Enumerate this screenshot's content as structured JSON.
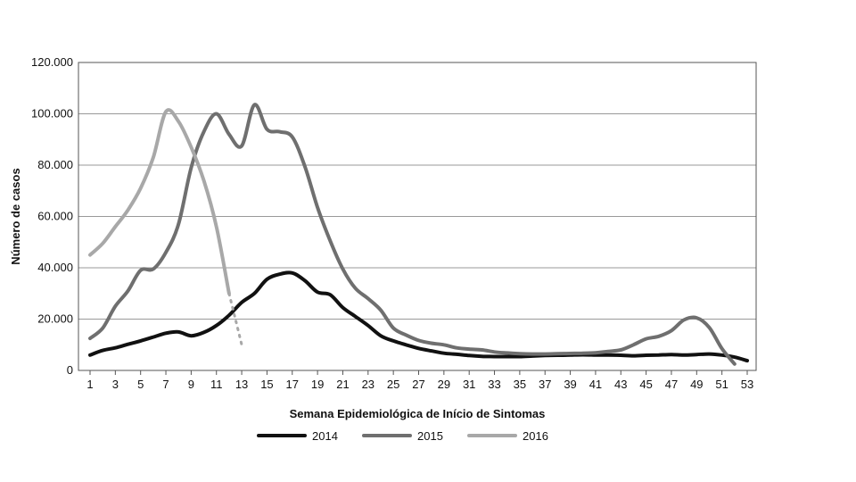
{
  "chart_data": {
    "type": "line",
    "title": "",
    "xlabel": "Semana Epidemiológica de Início de Sintomas",
    "ylabel": "Número de casos",
    "ylim": [
      0,
      120000
    ],
    "xlim": [
      1,
      53
    ],
    "x_ticks": [
      "1",
      "3",
      "5",
      "7",
      "9",
      "11",
      "13",
      "15",
      "17",
      "19",
      "21",
      "23",
      "25",
      "27",
      "29",
      "31",
      "33",
      "35",
      "37",
      "39",
      "41",
      "43",
      "45",
      "47",
      "49",
      "51",
      "53"
    ],
    "y_ticks": [
      "0",
      "20.000",
      "40.000",
      "60.000",
      "80.000",
      "100.000",
      "120.000"
    ],
    "grid": "horizontal",
    "legend_position": "bottom",
    "series": [
      {
        "name": "2014",
        "color": "#111111",
        "x": [
          1,
          2,
          3,
          4,
          5,
          6,
          7,
          8,
          9,
          10,
          11,
          12,
          13,
          14,
          15,
          16,
          17,
          18,
          19,
          20,
          21,
          22,
          23,
          24,
          25,
          26,
          27,
          28,
          29,
          30,
          31,
          32,
          33,
          34,
          35,
          36,
          37,
          38,
          39,
          40,
          41,
          42,
          43,
          44,
          45,
          46,
          47,
          48,
          49,
          50,
          51,
          52,
          53
        ],
        "values": [
          6000,
          7800,
          8800,
          10200,
          11500,
          13000,
          14500,
          15000,
          13500,
          14800,
          17500,
          21500,
          26500,
          30000,
          35500,
          37500,
          38000,
          35000,
          30500,
          29500,
          24500,
          21000,
          17500,
          13500,
          11500,
          10000,
          8600,
          7600,
          6700,
          6300,
          5800,
          5500,
          5400,
          5400,
          5400,
          5600,
          5800,
          5900,
          6000,
          6100,
          6000,
          6000,
          5900,
          5700,
          5900,
          6000,
          6200,
          6000,
          6200,
          6400,
          6000,
          5200,
          3800
        ]
      },
      {
        "name": "2015",
        "color": "#6f6f6f",
        "x": [
          1,
          2,
          3,
          4,
          5,
          6,
          7,
          8,
          9,
          10,
          11,
          12,
          13,
          14,
          15,
          16,
          17,
          18,
          19,
          20,
          21,
          22,
          23,
          24,
          25,
          26,
          27,
          28,
          29,
          30,
          31,
          32,
          33,
          34,
          35,
          36,
          37,
          38,
          39,
          40,
          41,
          42,
          43,
          44,
          45,
          46,
          47,
          48,
          49,
          50,
          51,
          52
        ],
        "values": [
          12500,
          16500,
          25000,
          31000,
          39000,
          39500,
          46000,
          57000,
          79000,
          93000,
          100000,
          92000,
          87500,
          103500,
          94000,
          93000,
          91000,
          79500,
          63500,
          50500,
          39500,
          32000,
          28000,
          23500,
          16500,
          13800,
          11700,
          10600,
          10000,
          8800,
          8300,
          8000,
          7200,
          6800,
          6500,
          6400,
          6400,
          6500,
          6600,
          6700,
          6900,
          7400,
          8000,
          10000,
          12300,
          13300,
          15500,
          19700,
          20500,
          16700,
          8500,
          2500
        ]
      },
      {
        "name": "2016",
        "color": "#a8a8a8",
        "x": [
          1,
          2,
          3,
          4,
          5,
          6,
          7,
          8,
          9,
          10,
          11,
          12
        ],
        "values": [
          45000,
          49500,
          56000,
          62500,
          71000,
          83000,
          100800,
          97000,
          87000,
          74000,
          56000,
          30000
        ]
      },
      {
        "name": "",
        "color": "#a8a8a8",
        "dashed": true,
        "x": [
          12,
          12.5,
          13
        ],
        "values": [
          30000,
          20000,
          10000
        ]
      }
    ]
  }
}
